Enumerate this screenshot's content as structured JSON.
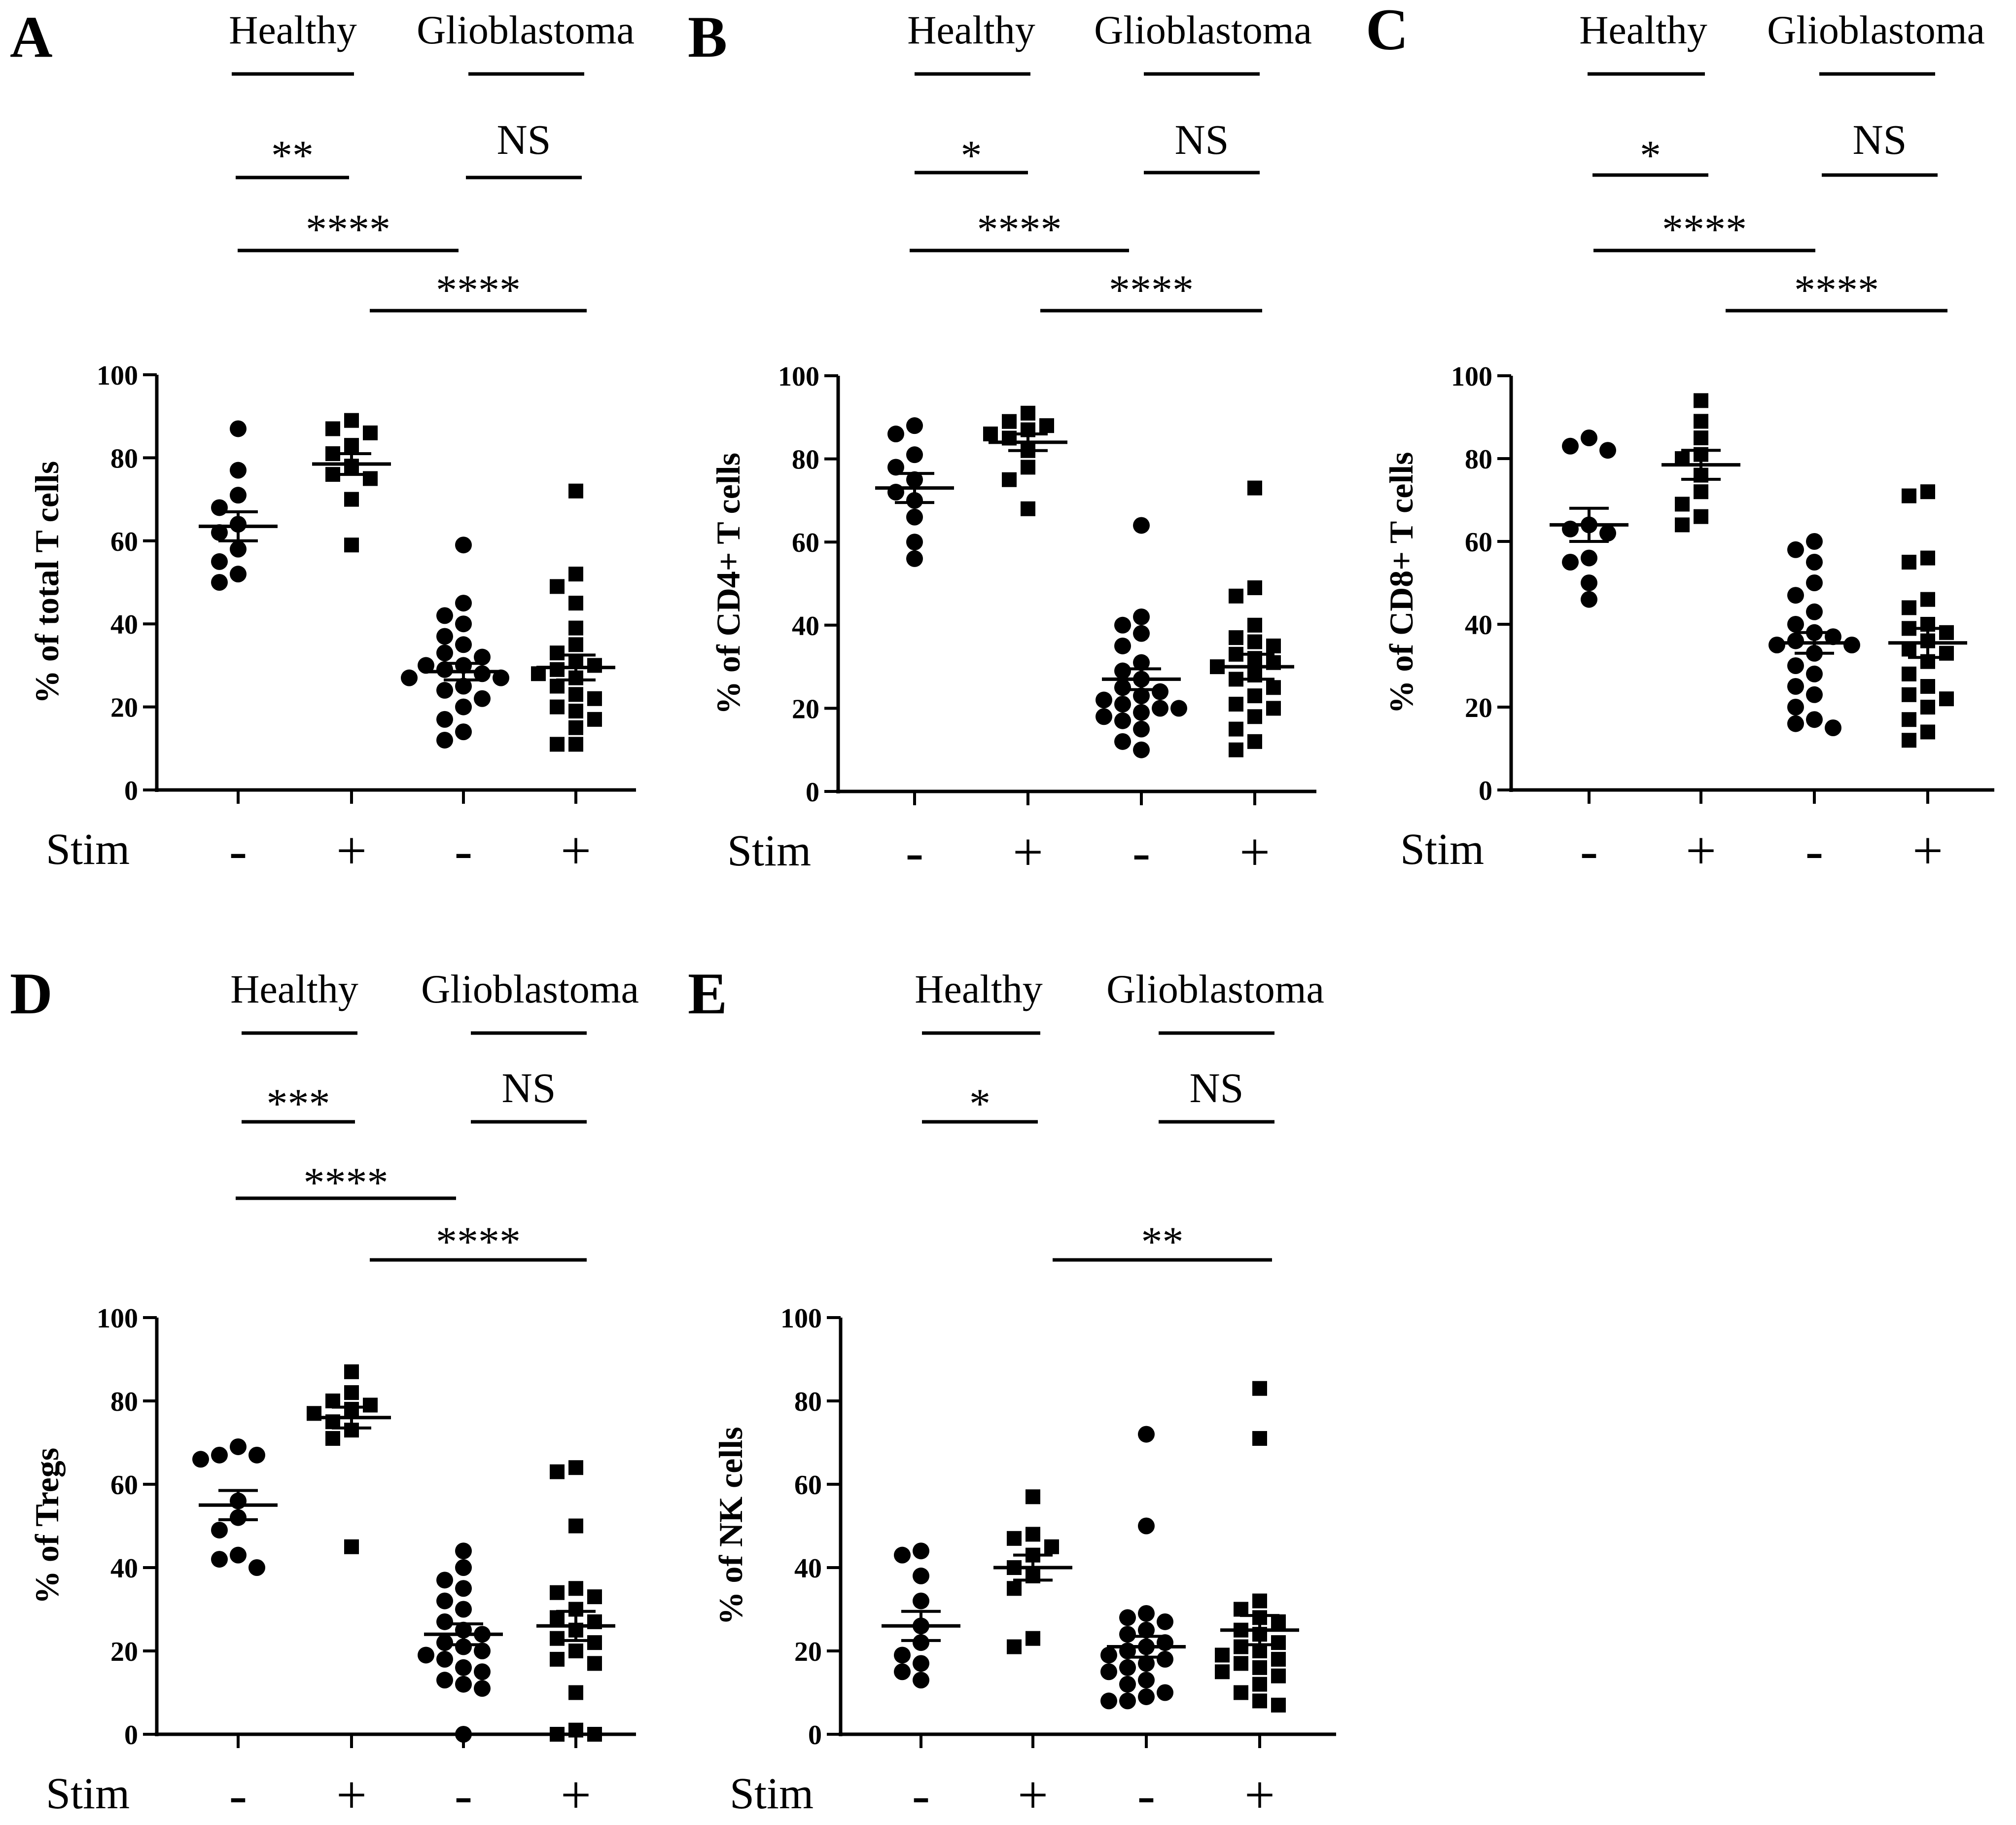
{
  "figure": {
    "type": "scatter",
    "categories": [
      {
        "group": "Healthy",
        "stim": "-"
      },
      {
        "group": "Healthy",
        "stim": "+"
      },
      {
        "group": "Glioblastoma",
        "stim": "-"
      },
      {
        "group": "Glioblastoma",
        "stim": "+"
      }
    ]
  },
  "chart_data": [
    {
      "panel": "A",
      "type": "scatter",
      "ylabel": "% of total T cells",
      "ylim": [
        0,
        100
      ],
      "yticks": [
        0,
        20,
        40,
        60,
        80,
        100
      ],
      "group_labels": [
        "Healthy",
        "Glioblastoma"
      ],
      "stim_label": "Stim",
      "stim_signs": [
        "-",
        "+",
        "-",
        "+"
      ],
      "significance": [
        {
          "from": 0,
          "to": 1,
          "label": "**"
        },
        {
          "from": 2,
          "to": 3,
          "label": "NS"
        },
        {
          "from": 0,
          "to": 2,
          "label": "****"
        },
        {
          "from": 1,
          "to": 3,
          "label": "****"
        }
      ],
      "series": [
        {
          "marker": "circle",
          "mean": 63.5,
          "sem": 3.5,
          "values": [
            87,
            77,
            71,
            68,
            64,
            62,
            58,
            55,
            52,
            50
          ]
        },
        {
          "marker": "square",
          "mean": 78.5,
          "sem": 2.5,
          "values": [
            89,
            87,
            86,
            83,
            81,
            78,
            76,
            75,
            70,
            59
          ]
        },
        {
          "marker": "circle",
          "mean": 28.5,
          "sem": 2.0,
          "values": [
            59,
            45,
            42,
            40,
            37,
            35,
            33,
            32,
            30,
            30,
            29,
            28,
            27,
            27,
            25,
            24,
            22,
            20,
            17,
            14,
            12
          ]
        },
        {
          "marker": "square",
          "mean": 29.5,
          "sem": 3.0,
          "values": [
            72,
            52,
            49,
            45,
            39,
            35,
            33,
            31,
            30,
            29,
            28,
            27,
            25,
            23,
            22,
            20,
            19,
            17,
            15,
            11,
            11
          ]
        }
      ]
    },
    {
      "panel": "B",
      "type": "scatter",
      "ylabel": "% of CD4+ T cells",
      "ylim": [
        0,
        100
      ],
      "yticks": [
        0,
        20,
        40,
        60,
        80,
        100
      ],
      "group_labels": [
        "Healthy",
        "Glioblastoma"
      ],
      "stim_label": "Stim",
      "stim_signs": [
        "-",
        "+",
        "-",
        "+"
      ],
      "significance": [
        {
          "from": 0,
          "to": 1,
          "label": "*"
        },
        {
          "from": 2,
          "to": 3,
          "label": "NS"
        },
        {
          "from": 0,
          "to": 2,
          "label": "****"
        },
        {
          "from": 1,
          "to": 3,
          "label": "****"
        }
      ],
      "series": [
        {
          "marker": "circle",
          "mean": 73,
          "sem": 3.5,
          "values": [
            88,
            86,
            81,
            78,
            75,
            72,
            70,
            66,
            60,
            56
          ]
        },
        {
          "marker": "square",
          "mean": 84,
          "sem": 2.0,
          "values": [
            91,
            89,
            88,
            87,
            86,
            85,
            82,
            78,
            75,
            68
          ]
        },
        {
          "marker": "circle",
          "mean": 27,
          "sem": 2.5,
          "values": [
            64,
            42,
            40,
            38,
            35,
            31,
            29,
            27,
            25,
            24,
            23,
            22,
            21,
            20,
            20,
            19,
            18,
            17,
            15,
            12,
            10
          ]
        },
        {
          "marker": "square",
          "mean": 30,
          "sem": 3.0,
          "values": [
            73,
            49,
            47,
            40,
            37,
            36,
            35,
            33,
            32,
            31,
            30,
            28,
            27,
            25,
            23,
            21,
            20,
            18,
            15,
            12,
            10
          ]
        }
      ]
    },
    {
      "panel": "C",
      "type": "scatter",
      "ylabel": "% of CD8+ T cells",
      "ylim": [
        0,
        100
      ],
      "yticks": [
        0,
        20,
        40,
        60,
        80,
        100
      ],
      "group_labels": [
        "Healthy",
        "Glioblastoma"
      ],
      "stim_label": "Stim",
      "stim_signs": [
        "-",
        "+",
        "-",
        "+"
      ],
      "significance": [
        {
          "from": 0,
          "to": 1,
          "label": "*"
        },
        {
          "from": 2,
          "to": 3,
          "label": "NS"
        },
        {
          "from": 0,
          "to": 2,
          "label": "****"
        },
        {
          "from": 1,
          "to": 3,
          "label": "****"
        }
      ],
      "series": [
        {
          "marker": "circle",
          "mean": 64,
          "sem": 4.0,
          "values": [
            85,
            83,
            82,
            64,
            63,
            62,
            56,
            55,
            50,
            46
          ]
        },
        {
          "marker": "square",
          "mean": 78.5,
          "sem": 3.5,
          "values": [
            94,
            89,
            85,
            81,
            80,
            76,
            72,
            69,
            66,
            64
          ]
        },
        {
          "marker": "circle",
          "mean": 35.5,
          "sem": 2.5,
          "values": [
            60,
            58,
            55,
            50,
            47,
            43,
            40,
            38,
            37,
            36,
            35,
            35,
            33,
            30,
            28,
            25,
            23,
            20,
            17,
            16,
            15
          ]
        },
        {
          "marker": "square",
          "mean": 35.5,
          "sem": 3.5,
          "values": [
            72,
            71,
            56,
            55,
            46,
            44,
            40,
            39,
            38,
            36,
            34,
            33,
            31,
            28,
            25,
            23,
            22,
            20,
            17,
            14,
            12
          ]
        }
      ]
    },
    {
      "panel": "D",
      "type": "scatter",
      "ylabel": "% of Tregs",
      "ylim": [
        0,
        100
      ],
      "yticks": [
        0,
        20,
        40,
        60,
        80,
        100
      ],
      "group_labels": [
        "Healthy",
        "Glioblastoma"
      ],
      "stim_label": "Stim",
      "stim_signs": [
        "-",
        "+",
        "-",
        "+"
      ],
      "significance": [
        {
          "from": 0,
          "to": 1,
          "label": "***"
        },
        {
          "from": 2,
          "to": 3,
          "label": "NS"
        },
        {
          "from": 0,
          "to": 2,
          "label": "****"
        },
        {
          "from": 1,
          "to": 3,
          "label": "****"
        }
      ],
      "series": [
        {
          "marker": "circle",
          "mean": 55,
          "sem": 3.5,
          "values": [
            69,
            67,
            67,
            66,
            56,
            52,
            49,
            43,
            42,
            40
          ]
        },
        {
          "marker": "square",
          "mean": 76,
          "sem": 2.5,
          "values": [
            87,
            82,
            80,
            79,
            78,
            77,
            75,
            73,
            71,
            45
          ]
        },
        {
          "marker": "circle",
          "mean": 24,
          "sem": 2.5,
          "values": [
            44,
            40,
            37,
            35,
            32,
            30,
            27,
            25,
            24,
            22,
            21,
            20,
            19,
            18,
            16,
            15,
            13,
            12,
            11,
            0
          ]
        },
        {
          "marker": "square",
          "mean": 26,
          "sem": 3.5,
          "values": [
            64,
            63,
            50,
            35,
            34,
            33,
            30,
            28,
            27,
            25,
            23,
            22,
            20,
            18,
            17,
            10,
            1,
            0,
            0
          ]
        }
      ]
    },
    {
      "panel": "E",
      "type": "scatter",
      "ylabel": "% of NK cells",
      "ylim": [
        0,
        100
      ],
      "yticks": [
        0,
        20,
        40,
        60,
        80,
        100
      ],
      "group_labels": [
        "Healthy",
        "Glioblastoma"
      ],
      "stim_label": "Stim",
      "stim_signs": [
        "-",
        "+",
        "-",
        "+"
      ],
      "significance": [
        {
          "from": 0,
          "to": 1,
          "label": "*"
        },
        {
          "from": 2,
          "to": 3,
          "label": "NS"
        },
        {
          "from": 1,
          "to": 3,
          "label": "**"
        }
      ],
      "series": [
        {
          "marker": "circle",
          "mean": 26,
          "sem": 3.5,
          "values": [
            44,
            43,
            38,
            32,
            26,
            22,
            19,
            17,
            15,
            13
          ]
        },
        {
          "marker": "square",
          "mean": 40,
          "sem": 3.0,
          "values": [
            57,
            48,
            47,
            45,
            43,
            40,
            38,
            35,
            23,
            21
          ]
        },
        {
          "marker": "circle",
          "mean": 21,
          "sem": 2.5,
          "values": [
            72,
            50,
            29,
            28,
            27,
            25,
            24,
            22,
            21,
            20,
            19,
            18,
            17,
            16,
            15,
            13,
            12,
            10,
            9,
            8,
            8
          ]
        },
        {
          "marker": "square",
          "mean": 25,
          "sem": 3.5,
          "values": [
            83,
            71,
            32,
            30,
            28,
            27,
            25,
            24,
            22,
            21,
            20,
            19,
            18,
            17,
            16,
            15,
            14,
            12,
            10,
            8,
            7
          ]
        }
      ]
    }
  ]
}
